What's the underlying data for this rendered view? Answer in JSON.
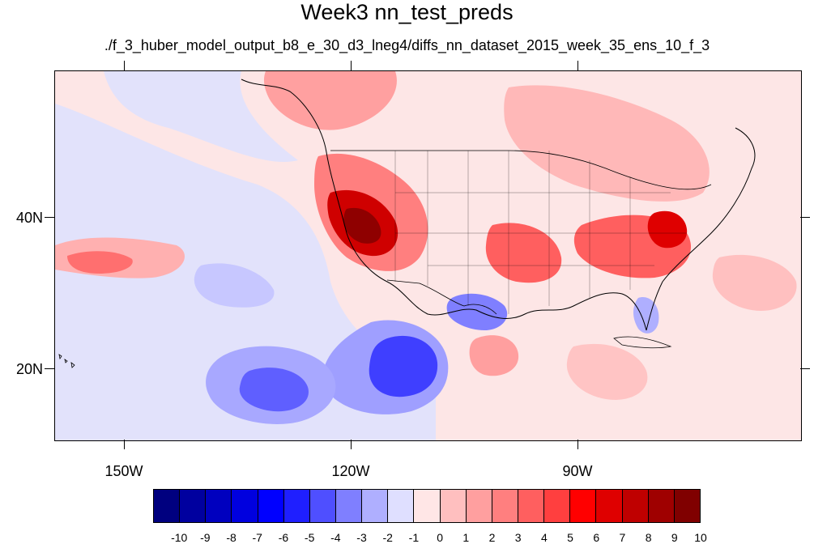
{
  "title": "Week3 nn_test_preds",
  "subtitle": "./f_3_huber_model_output_b8_e_30_d3_lneg4/diffs_nn_dataset_2015_week_35_ens_10_f_3",
  "lat_labels": [
    "40N",
    "20N"
  ],
  "lon_labels": [
    "150W",
    "120W",
    "90W"
  ],
  "colorbar": {
    "labels": [
      "-10",
      "-9",
      "-8",
      "-7",
      "-6",
      "-5",
      "-4",
      "-3",
      "-2",
      "-1",
      "0",
      "1",
      "2",
      "3",
      "4",
      "5",
      "6",
      "7",
      "8",
      "9",
      "10"
    ],
    "colors": [
      "#00007f",
      "#00009f",
      "#0000bf",
      "#0000df",
      "#0000ff",
      "#1f1fff",
      "#4f4fff",
      "#7f7fff",
      "#afafff",
      "#dfdfff",
      "#ffe6e6",
      "#ffbfbf",
      "#ff9f9f",
      "#ff7f7f",
      "#ff5f5f",
      "#ff3f3f",
      "#ff0000",
      "#df0000",
      "#bf0000",
      "#9f0000",
      "#800000"
    ]
  }
}
